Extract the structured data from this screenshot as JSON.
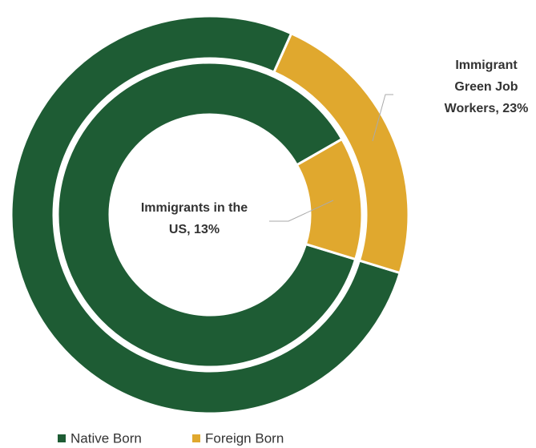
{
  "chart_data": {
    "type": "nested-donut",
    "categories": [
      "Native Born",
      "Foreign Born"
    ],
    "colors": [
      "#1e5c34",
      "#e0a82e"
    ],
    "series": [
      {
        "values": [
          77,
          23
        ],
        "value_labels": [
          null,
          "Immigrant Green Job Workers, 23%"
        ]
      },
      {
        "values": [
          87,
          13
        ],
        "value_labels": [
          null,
          "Immigrants in the US, 13%"
        ]
      }
    ],
    "legend": "bottom"
  }
}
